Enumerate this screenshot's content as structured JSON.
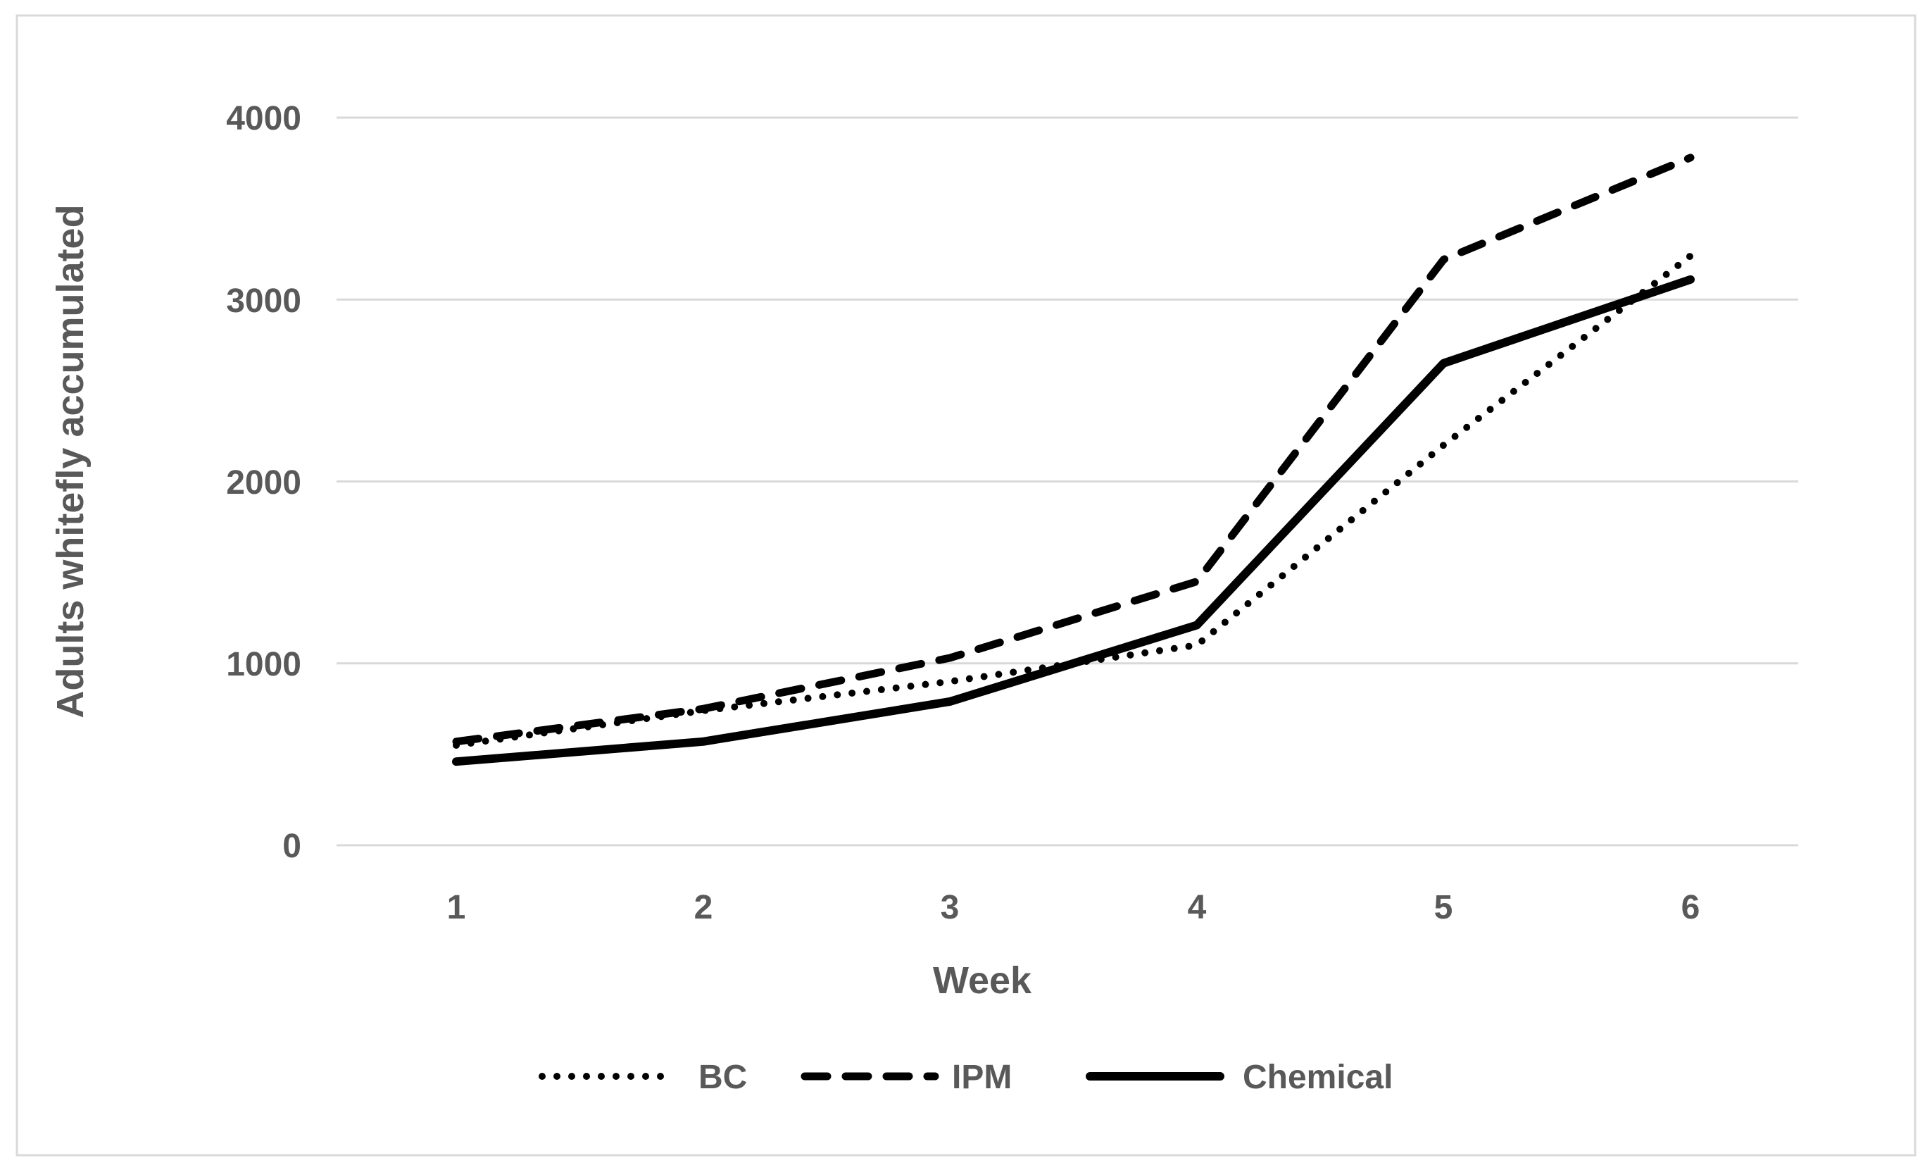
{
  "figure": {
    "background": "#ffffff",
    "border_color": "#d9d9d9",
    "grid_color": "#d9d9d9",
    "text_color": "#595959",
    "line_color": "#000000"
  },
  "chart_data": {
    "type": "line",
    "title": "",
    "xlabel": "Week",
    "ylabel": "Adults whitefly accumulated",
    "x": [
      1,
      2,
      3,
      4,
      5,
      6
    ],
    "xticks": [
      "1",
      "2",
      "3",
      "4",
      "5",
      "6"
    ],
    "yticks": [
      "0",
      "1000",
      "2000",
      "3000",
      "4000"
    ],
    "ytick_values": [
      0,
      1000,
      2000,
      3000,
      4000
    ],
    "ylim": [
      0,
      4000
    ],
    "grid": true,
    "legend_position": "bottom",
    "series": [
      {
        "name": "BC",
        "style": "dotted",
        "values": [
          550,
          740,
          900,
          1100,
          2200,
          3240
        ]
      },
      {
        "name": "IPM",
        "style": "dashed",
        "values": [
          570,
          750,
          1030,
          1450,
          3220,
          3780
        ]
      },
      {
        "name": "Chemical",
        "style": "solid",
        "values": [
          460,
          570,
          790,
          1210,
          2650,
          3110
        ]
      }
    ]
  }
}
